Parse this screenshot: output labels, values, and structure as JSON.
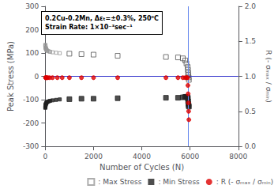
{
  "chart_data": {
    "type": "scatter",
    "xlabel": "Number of Cycles (N)",
    "ylabel": "Peak Stress (MPa)",
    "y2label": "R (- σₘₐₓ / σₘᵢₙ)",
    "annotations": [
      "0.2Cu-0.2Mn, Δεₜ=±0.3%, 250⁰C",
      "Strain Rate: 1×10⁻³sec⁻¹"
    ],
    "xlim": [
      0,
      8000
    ],
    "xticks": [
      0,
      2000,
      4000,
      6000,
      8000
    ],
    "ylim": [
      -300,
      300
    ],
    "yticks": [
      -300,
      -200,
      -100,
      0,
      100,
      200,
      300
    ],
    "y2lim": [
      0,
      2
    ],
    "y2ticks": [
      {
        "value": 0,
        "label": "0.0"
      },
      0.5,
      {
        "value": 1,
        "label": "1.0"
      },
      1.5,
      {
        "value": 2,
        "label": "2.0"
      }
    ],
    "grid": false,
    "legend": "lower right",
    "hline": {
      "y": 0,
      "color": "#3333cc"
    },
    "vline": {
      "x": 5930,
      "color": "#6688ee"
    },
    "series": [
      {
        "name": ": Max Stress",
        "color": "#999999",
        "marker": "square-open",
        "x": [
          2,
          4,
          6,
          8,
          10,
          14,
          18,
          24,
          30,
          40,
          50,
          70,
          100,
          150,
          200,
          300,
          450,
          600
        ],
        "values": [
          135,
          132,
          130,
          128,
          126,
          123,
          121,
          119,
          117,
          115,
          113,
          111,
          109,
          107,
          105,
          103,
          101,
          99
        ]
      },
      {
        "name": ": Max Stress",
        "color": "#555555",
        "marker": "square-open",
        "x": [
          1000,
          1500,
          2000,
          3000,
          5000,
          5500,
          5700,
          5800,
          5850,
          5900,
          5910,
          5920,
          5930,
          5940,
          5950
        ],
        "values": [
          97,
          95,
          93,
          88,
          83,
          81,
          77,
          68,
          55,
          40,
          28,
          15,
          5,
          -5,
          -15
        ]
      },
      {
        "name": ": Min Stress",
        "color": "#222222",
        "marker": "square",
        "x": [
          2,
          4,
          6,
          8,
          10,
          14,
          18,
          24,
          30,
          40,
          50,
          70,
          100,
          150,
          200,
          300,
          450,
          600
        ],
        "values": [
          -135,
          -132,
          -130,
          -128,
          -126,
          -123,
          -121,
          -119,
          -117,
          -115,
          -113,
          -111,
          -109,
          -107,
          -105,
          -103,
          -101,
          -99
        ]
      },
      {
        "name": ": Min Stress",
        "color": "#222222",
        "marker": "square",
        "x": [
          1000,
          1500,
          2000,
          3000,
          5000,
          5500,
          5700,
          5800,
          5850,
          5900,
          5910,
          5920,
          5930,
          5940,
          5950
        ],
        "values": [
          -98,
          -96,
          -96,
          -94,
          -92,
          -92,
          -90,
          -88,
          -88,
          -90,
          -95,
          -107,
          -118,
          -125,
          -130
        ]
      },
      {
        "name": ": R (- σₘₐₓ / σₘᵢₙ)",
        "color": "#dd0000",
        "marker": "circle",
        "axis": "y2",
        "x": [
          10,
          20,
          35,
          60,
          100,
          180,
          300,
          500,
          700,
          1000,
          1500,
          2000,
          3000,
          5000,
          5500,
          5700,
          5800,
          5850,
          5900,
          5910,
          5920,
          5930,
          5940,
          5950
        ],
        "values": [
          0.98,
          0.98,
          0.98,
          0.98,
          0.98,
          0.98,
          0.98,
          0.98,
          0.98,
          0.98,
          0.98,
          0.98,
          0.98,
          0.98,
          0.98,
          0.98,
          0.98,
          0.98,
          0.98,
          0.87,
          0.75,
          0.62,
          0.5,
          0.38
        ]
      }
    ]
  }
}
